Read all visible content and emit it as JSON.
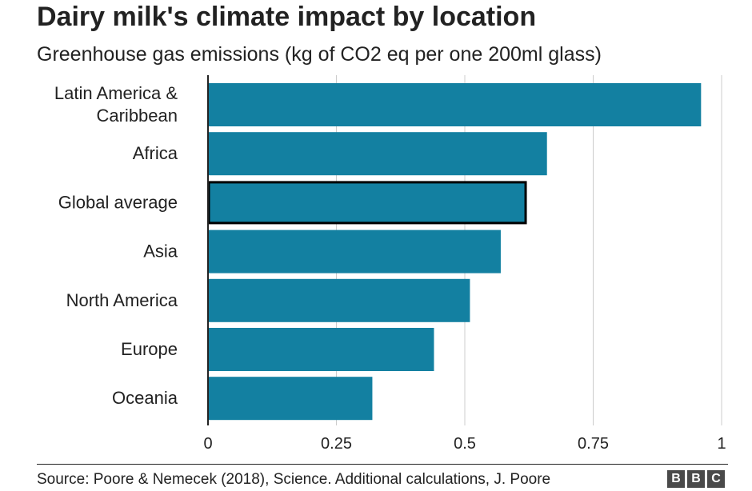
{
  "chart_data": {
    "type": "bar",
    "orientation": "horizontal",
    "title": "Dairy milk's climate impact by location",
    "subtitle": "Greenhouse gas emissions (kg of CO2 eq per one 200ml glass)",
    "categories": [
      [
        "Latin America &",
        "Caribbean"
      ],
      [
        "Africa"
      ],
      [
        "Global average"
      ],
      [
        "Asia"
      ],
      [
        "North America"
      ],
      [
        "Europe"
      ],
      [
        "Oceania"
      ]
    ],
    "values": [
      0.96,
      0.66,
      0.62,
      0.57,
      0.51,
      0.44,
      0.32
    ],
    "highlight_index": 2,
    "xlim": [
      0,
      1
    ],
    "xticks": [
      0,
      0.25,
      0.5,
      0.75,
      1
    ],
    "xtick_labels": [
      "0",
      "0.25",
      "0.5",
      "0.75",
      "1"
    ],
    "grid": "vertical",
    "bar_color": "#1380a1",
    "highlight_outline_color": "#000000",
    "source": "Source: Poore & Nemecek (2018), Science. Additional calculations, J. Poore",
    "logo_letters": [
      "B",
      "B",
      "C"
    ]
  }
}
